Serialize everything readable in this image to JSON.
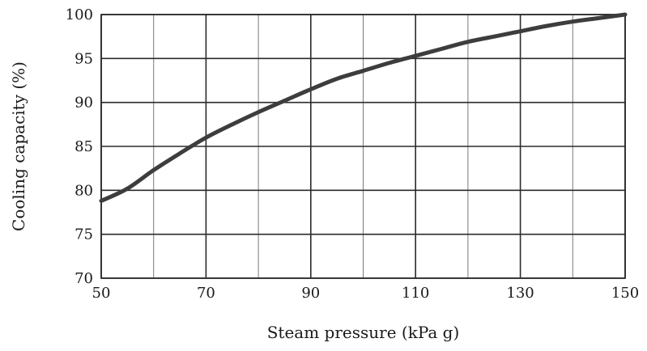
{
  "chart_data": {
    "type": "line",
    "xlabel": "Steam pressure (kPa g)",
    "ylabel": "Cooling capacity (%)",
    "xlim": [
      50,
      150
    ],
    "ylim": [
      70,
      100
    ],
    "xticks": [
      50,
      70,
      90,
      110,
      130,
      150
    ],
    "yticks": [
      70,
      75,
      80,
      85,
      90,
      95,
      100
    ],
    "x_minor_gridlines": [
      60,
      80,
      100,
      120,
      140
    ],
    "grid": true,
    "series": [
      {
        "color": "#3d3d3d",
        "x": [
          50,
          55,
          60,
          65,
          70,
          75,
          80,
          85,
          90,
          95,
          100,
          105,
          110,
          115,
          120,
          125,
          130,
          135,
          140,
          145,
          150
        ],
        "y": [
          78.8,
          80.2,
          82.3,
          84.2,
          86.0,
          87.5,
          88.9,
          90.2,
          91.5,
          92.7,
          93.6,
          94.5,
          95.3,
          96.1,
          96.9,
          97.5,
          98.1,
          98.7,
          99.2,
          99.6,
          100.0
        ]
      }
    ]
  }
}
